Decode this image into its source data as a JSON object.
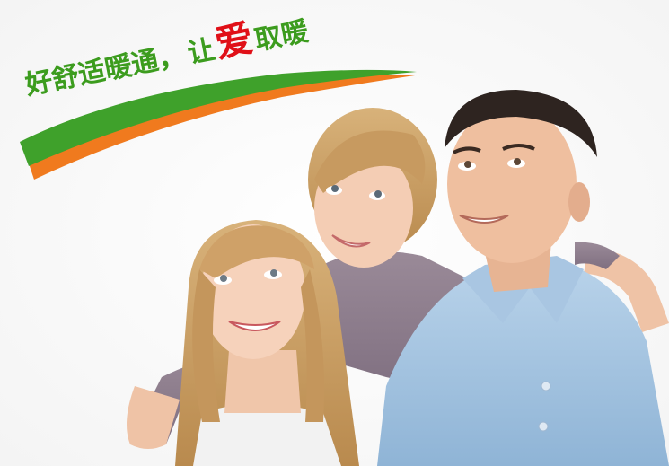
{
  "slogan": {
    "part1": "好舒适暖通",
    "comma": "，",
    "part2": "让",
    "highlight": "爱",
    "part3": "取暖"
  },
  "colors": {
    "slogan_green": "#3c9c1e",
    "slogan_red": "#e01018",
    "swoosh_green": "#3fa12b",
    "swoosh_orange": "#f07a1e",
    "background": "#ffffff"
  },
  "scene": {
    "subjects": [
      "woman",
      "girl",
      "man"
    ]
  }
}
